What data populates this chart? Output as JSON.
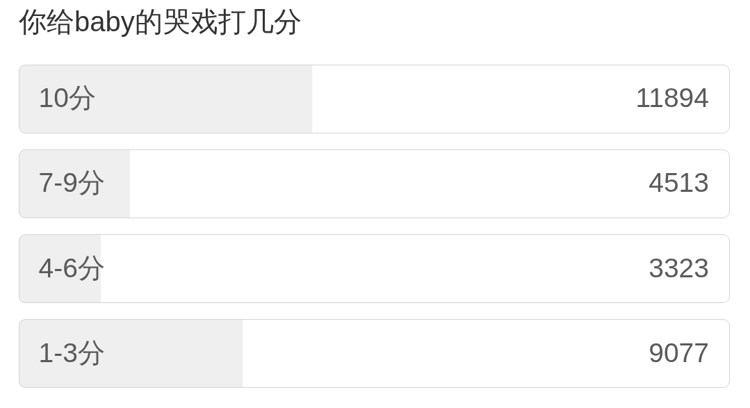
{
  "chart_data": {
    "type": "bar",
    "orientation": "horizontal",
    "title": "你给baby的哭戏打几分",
    "categories": [
      "10分",
      "7-9分",
      "4-6分",
      "1-3分"
    ],
    "values": [
      11894,
      4513,
      3323,
      9077
    ],
    "color": "#efefef",
    "data_labels": true
  }
}
